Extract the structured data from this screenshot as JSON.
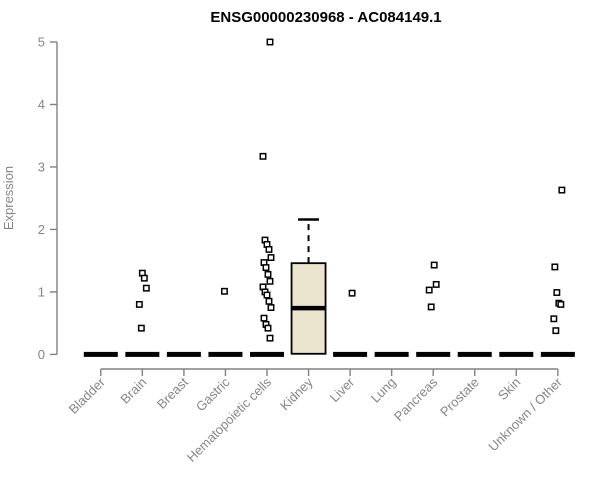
{
  "chart_data": {
    "type": "boxplot",
    "title": "ENSG00000230968 - AC084149.1",
    "ylabel": "Expression",
    "xlabel": "",
    "ylim": [
      0,
      5
    ],
    "yticks": [
      0,
      1,
      2,
      3,
      4,
      5
    ],
    "grid": false,
    "legend": false,
    "categories": [
      "Bladder",
      "Brain",
      "Breast",
      "Gastric",
      "Hematopoietic cells",
      "Kidney",
      "Liver",
      "Lung",
      "Pancreas",
      "Prostate",
      "Skin",
      "Unknown / Other"
    ],
    "boxes": [
      {
        "category": "Bladder",
        "whisker_low": 0,
        "q1": 0,
        "median": 0,
        "q3": 0,
        "whisker_high": 0,
        "outliers": []
      },
      {
        "category": "Brain",
        "whisker_low": 0,
        "q1": 0,
        "median": 0,
        "q3": 0,
        "whisker_high": 0,
        "outliers": [
          1.3,
          1.22,
          1.06,
          0.8,
          0.42
        ]
      },
      {
        "category": "Breast",
        "whisker_low": 0,
        "q1": 0,
        "median": 0,
        "q3": 0,
        "whisker_high": 0,
        "outliers": []
      },
      {
        "category": "Gastric",
        "whisker_low": 0,
        "q1": 0,
        "median": 0,
        "q3": 0,
        "whisker_high": 0,
        "outliers": [
          1.01
        ]
      },
      {
        "category": "Hematopoietic cells",
        "whisker_low": 0,
        "q1": 0,
        "median": 0,
        "q3": 0,
        "whisker_high": 0,
        "outliers": [
          5.0,
          3.17,
          1.83,
          1.76,
          1.68,
          1.55,
          1.47,
          1.39,
          1.28,
          1.17,
          1.08,
          1.0,
          0.95,
          0.85,
          0.75,
          0.58,
          0.48,
          0.42,
          0.26
        ]
      },
      {
        "category": "Kidney",
        "whisker_low": 0,
        "q1": 0.01,
        "median": 0.74,
        "q3": 1.46,
        "whisker_high": 2.16,
        "outliers": []
      },
      {
        "category": "Liver",
        "whisker_low": 0,
        "q1": 0,
        "median": 0,
        "q3": 0,
        "whisker_high": 0,
        "outliers": [
          0.98
        ]
      },
      {
        "category": "Lung",
        "whisker_low": 0,
        "q1": 0,
        "median": 0,
        "q3": 0,
        "whisker_high": 0,
        "outliers": []
      },
      {
        "category": "Pancreas",
        "whisker_low": 0,
        "q1": 0,
        "median": 0,
        "q3": 0,
        "whisker_high": 0,
        "outliers": [
          1.43,
          1.12,
          1.03,
          0.76
        ]
      },
      {
        "category": "Prostate",
        "whisker_low": 0,
        "q1": 0,
        "median": 0,
        "q3": 0,
        "whisker_high": 0,
        "outliers": []
      },
      {
        "category": "Skin",
        "whisker_low": 0,
        "q1": 0,
        "median": 0,
        "q3": 0,
        "whisker_high": 0,
        "outliers": []
      },
      {
        "category": "Unknown / Other",
        "whisker_low": 0,
        "q1": 0,
        "median": 0,
        "q3": 0,
        "whisker_high": 0,
        "outliers": [
          2.63,
          1.4,
          0.99,
          0.82,
          0.8,
          0.57,
          0.38
        ]
      }
    ],
    "style": {
      "box_fill": "#EBE5CF",
      "box_border": "#000000",
      "median_color": "#000000",
      "outlier_marker": "open-square",
      "outlier_stroke": "#000000",
      "outlier_fill": "#FFFFFF",
      "axis_color": "#808080",
      "text_color": "#858585",
      "title_color": "#000000",
      "background": "#FFFFFF"
    }
  }
}
